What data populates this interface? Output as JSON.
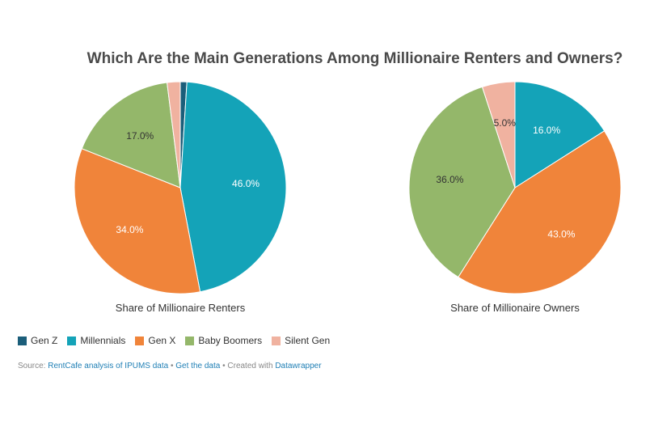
{
  "chart_data": {
    "type": "pie",
    "title": "Which Are the Main Generations Among Millionaire Renters and Owners?",
    "legend": [
      {
        "name": "Gen Z",
        "color": "#1b5e7a"
      },
      {
        "name": "Millennials",
        "color": "#14a3b8"
      },
      {
        "name": "Gen X",
        "color": "#f0843a"
      },
      {
        "name": "Baby Boomers",
        "color": "#94b76a"
      },
      {
        "name": "Silent Gen",
        "color": "#f0b2a0"
      }
    ],
    "legend_placement": "bottom-left",
    "charts": [
      {
        "caption": "Share of Millionaire Renters",
        "slices": [
          {
            "name": "Gen Z",
            "value": 1.0,
            "label": ""
          },
          {
            "name": "Millennials",
            "value": 46.0,
            "label": "46.0%"
          },
          {
            "name": "Gen X",
            "value": 34.0,
            "label": "34.0%"
          },
          {
            "name": "Baby Boomers",
            "value": 17.0,
            "label": "17.0%"
          },
          {
            "name": "Silent Gen",
            "value": 2.0,
            "label": ""
          }
        ]
      },
      {
        "caption": "Share of Millionaire Owners",
        "slices": [
          {
            "name": "Gen Z",
            "value": 0.0,
            "label": ""
          },
          {
            "name": "Millennials",
            "value": 16.0,
            "label": "16.0%"
          },
          {
            "name": "Gen X",
            "value": 43.0,
            "label": "43.0%"
          },
          {
            "name": "Baby Boomers",
            "value": 36.0,
            "label": "36.0%"
          },
          {
            "name": "Silent Gen",
            "value": 5.0,
            "label": "5.0%"
          }
        ]
      }
    ]
  },
  "footer": {
    "source_prefix": "Source: ",
    "source_link": "RentCafe analysis of IPUMS data",
    "separator1": " • ",
    "get_data": "Get the data",
    "separator2": " • Created with ",
    "datawrapper": "Datawrapper"
  }
}
